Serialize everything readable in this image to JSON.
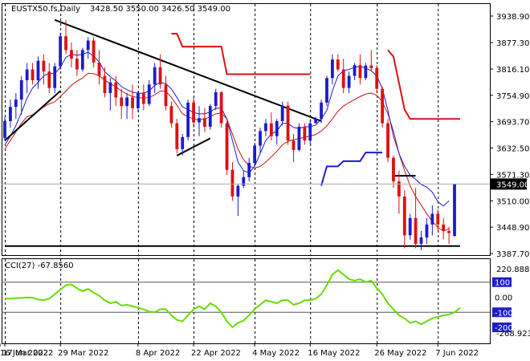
{
  "header": {
    "symbol": "EUSTX50.fs,Daily",
    "ohlc": "3428.50 3550.00 3426.50 3549.00"
  },
  "indicator": {
    "label": "CCI(27) -67.8560",
    "max_label": "220.8885",
    "min_label": "-268.9239"
  },
  "current_price_label": "3549.00",
  "chart_data": {
    "type": "candlestick",
    "title": "EUSTX50.fs,Daily",
    "price_axis": {
      "ticks": [
        "3938.90",
        "3877.30",
        "3816.10",
        "3754.90",
        "3693.70",
        "3632.50",
        "3571.30",
        "3510.00",
        "3448.90",
        "3387.70"
      ],
      "ylim": [
        3387.7,
        3938.9
      ]
    },
    "cci_axis": {
      "ticks": [
        "100",
        "0.00",
        "-100",
        "-200"
      ],
      "ylim": [
        -268.9239,
        220.8885
      ],
      "levels": [
        100,
        -100
      ]
    },
    "x_tick_labels": [
      "17 Mar 2022",
      "29 Mar 2022",
      "8 Apr 2022",
      "22 Apr 2022",
      "4 May 2022",
      "16 May 2022",
      "26 May 2022",
      "7 Jun 2022",
      "16 Jun 2022"
    ],
    "colors": {
      "up": "#1c1ccc",
      "down": "#dd1111",
      "blue_ma": "#1c1ccc",
      "red_ma": "#cc1111",
      "cci": "#66dd00",
      "trendline": "#000000",
      "support": "#000000"
    },
    "candles": [
      [
        3656,
        3705,
        3650,
        3695
      ],
      [
        3695,
        3745,
        3680,
        3728
      ],
      [
        3728,
        3760,
        3700,
        3745
      ],
      [
        3745,
        3800,
        3710,
        3790
      ],
      [
        3790,
        3830,
        3760,
        3815
      ],
      [
        3815,
        3830,
        3780,
        3790
      ],
      [
        3790,
        3845,
        3770,
        3835
      ],
      [
        3835,
        3850,
        3780,
        3810
      ],
      [
        3810,
        3830,
        3760,
        3772
      ],
      [
        3772,
        3830,
        3760,
        3822
      ],
      [
        3822,
        3900,
        3815,
        3892
      ],
      [
        3892,
        3930,
        3850,
        3860
      ],
      [
        3860,
        3878,
        3820,
        3840
      ],
      [
        3840,
        3860,
        3800,
        3815
      ],
      [
        3815,
        3865,
        3810,
        3860
      ],
      [
        3860,
        3890,
        3840,
        3882
      ],
      [
        3882,
        3890,
        3820,
        3831
      ],
      [
        3831,
        3860,
        3780,
        3800
      ],
      [
        3800,
        3820,
        3750,
        3760
      ],
      [
        3760,
        3795,
        3720,
        3785
      ],
      [
        3785,
        3800,
        3730,
        3750
      ],
      [
        3750,
        3770,
        3700,
        3730
      ],
      [
        3730,
        3760,
        3700,
        3750
      ],
      [
        3750,
        3780,
        3700,
        3725
      ],
      [
        3725,
        3765,
        3715,
        3760
      ],
      [
        3760,
        3780,
        3720,
        3735
      ],
      [
        3735,
        3790,
        3730,
        3780
      ],
      [
        3780,
        3830,
        3760,
        3820
      ],
      [
        3820,
        3850,
        3770,
        3780
      ],
      [
        3780,
        3800,
        3720,
        3730
      ],
      [
        3730,
        3740,
        3680,
        3690
      ],
      [
        3690,
        3700,
        3620,
        3630
      ],
      [
        3630,
        3665,
        3615,
        3658
      ],
      [
        3658,
        3745,
        3650,
        3738
      ],
      [
        3738,
        3750,
        3680,
        3692
      ],
      [
        3692,
        3730,
        3660,
        3702
      ],
      [
        3702,
        3725,
        3670,
        3682
      ],
      [
        3682,
        3735,
        3675,
        3730
      ],
      [
        3730,
        3770,
        3720,
        3762
      ],
      [
        3762,
        3765,
        3680,
        3690
      ],
      [
        3690,
        3695,
        3570,
        3582
      ],
      [
        3582,
        3600,
        3510,
        3520
      ],
      [
        3520,
        3550,
        3475,
        3545
      ],
      [
        3545,
        3580,
        3540,
        3565
      ],
      [
        3565,
        3610,
        3555,
        3598
      ],
      [
        3598,
        3645,
        3590,
        3638
      ],
      [
        3638,
        3680,
        3620,
        3672
      ],
      [
        3672,
        3700,
        3660,
        3690
      ],
      [
        3690,
        3715,
        3650,
        3660
      ],
      [
        3660,
        3700,
        3640,
        3695
      ],
      [
        3695,
        3740,
        3685,
        3731
      ],
      [
        3731,
        3740,
        3640,
        3650
      ],
      [
        3650,
        3665,
        3600,
        3628
      ],
      [
        3628,
        3690,
        3625,
        3682
      ],
      [
        3682,
        3690,
        3640,
        3650
      ],
      [
        3650,
        3700,
        3640,
        3690
      ],
      [
        3690,
        3705,
        3690,
        3700
      ],
      [
        3700,
        3745,
        3690,
        3738
      ],
      [
        3738,
        3800,
        3730,
        3795
      ],
      [
        3795,
        3850,
        3780,
        3838
      ],
      [
        3838,
        3850,
        3810,
        3815
      ],
      [
        3815,
        3840,
        3760,
        3772
      ],
      [
        3772,
        3810,
        3760,
        3800
      ],
      [
        3800,
        3830,
        3790,
        3825
      ],
      [
        3825,
        3850,
        3780,
        3795
      ],
      [
        3795,
        3830,
        3790,
        3824
      ],
      [
        3824,
        3860,
        3810,
        3818
      ],
      [
        3818,
        3825,
        3760,
        3770
      ],
      [
        3770,
        3775,
        3680,
        3690
      ],
      [
        3690,
        3700,
        3600,
        3610
      ],
      [
        3610,
        3615,
        3540,
        3555
      ],
      [
        3555,
        3580,
        3480,
        3520
      ],
      [
        3520,
        3535,
        3400,
        3430
      ],
      [
        3430,
        3480,
        3420,
        3470
      ],
      [
        3470,
        3540,
        3400,
        3410
      ],
      [
        3410,
        3440,
        3395,
        3425
      ],
      [
        3425,
        3470,
        3410,
        3455
      ],
      [
        3455,
        3500,
        3430,
        3480
      ],
      [
        3480,
        3490,
        3440,
        3455
      ],
      [
        3455,
        3470,
        3420,
        3440
      ],
      [
        3440,
        3450,
        3410,
        3435
      ],
      [
        3428.5,
        3550,
        3426.5,
        3549
      ]
    ],
    "blue_ma": [
      3640,
      3660,
      3685,
      3715,
      3748,
      3772,
      3785,
      3800,
      3806,
      3805,
      3820,
      3843,
      3850,
      3848,
      3850,
      3855,
      3846,
      3832,
      3810,
      3798,
      3788,
      3775,
      3768,
      3762,
      3760,
      3760,
      3765,
      3778,
      3785,
      3782,
      3770,
      3750,
      3728,
      3722,
      3715,
      3712,
      3712,
      3716,
      3725,
      3725,
      3700,
      3650,
      3600,
      3580,
      3575,
      3590,
      3620,
      3650,
      3665,
      3672,
      3690,
      3690,
      3680,
      3678,
      3682,
      3682,
      3686,
      3700,
      3720,
      3765,
      3800,
      3812,
      3815,
      3820,
      3822,
      3818,
      3812,
      3800,
      3770,
      3720,
      3660,
      3620,
      3590,
      3570,
      3560,
      3548,
      3542,
      3530,
      3508,
      3498,
      3510
    ],
    "red_ma": [
      3630,
      3650,
      3670,
      3690,
      3705,
      3710,
      3718,
      3728,
      3735,
      3740,
      3752,
      3765,
      3778,
      3788,
      3795,
      3806,
      3805,
      3800,
      3790,
      3782,
      3775,
      3765,
      3758,
      3752,
      3750,
      3748,
      3750,
      3756,
      3765,
      3764,
      3750,
      3732,
      3712,
      3705,
      3700,
      3698,
      3700,
      3705,
      3712,
      3714,
      3700,
      3665,
      3630,
      3606,
      3590,
      3586,
      3590,
      3600,
      3612,
      3625,
      3640,
      3648,
      3652,
      3654,
      3658,
      3660,
      3664,
      3672,
      3684,
      3700,
      3718,
      3730,
      3738,
      3745,
      3752,
      3758,
      3760,
      3755,
      3740,
      3712,
      3672,
      3620,
      3580,
      3545,
      3520,
      3500,
      3480,
      3462,
      3448,
      3440,
      3445
    ],
    "stops_upper": [
      [
        [
          30,
          3898
        ],
        [
          31,
          3898
        ],
        [
          32,
          3868
        ],
        [
          39,
          3868
        ],
        [
          40,
          3804
        ],
        [
          55,
          3804
        ]
      ],
      [
        [
          69,
          3860
        ],
        [
          70,
          3845
        ],
        [
          72,
          3722
        ],
        [
          73,
          3700
        ],
        [
          82,
          3700
        ]
      ]
    ],
    "stops_lower": [
      [
        [
          57,
          3545
        ],
        [
          58,
          3590
        ],
        [
          60,
          3590
        ],
        [
          61,
          3602
        ],
        [
          64,
          3602
        ],
        [
          65,
          3622
        ],
        [
          68,
          3622
        ]
      ]
    ],
    "trendlines": [
      [
        [
          0,
          3650
        ],
        [
          10,
          3765
        ]
      ],
      [
        [
          9,
          3930
        ],
        [
          57,
          3695
        ]
      ],
      [
        [
          31,
          3615
        ],
        [
          37,
          3655
        ]
      ],
      [
        [
          70,
          3568
        ],
        [
          74,
          3568
        ]
      ],
      [
        [
          0,
          3405
        ],
        [
          82,
          3405
        ]
      ]
    ],
    "vertical_separators": [
      0,
      10,
      24,
      34,
      45,
      55,
      67,
      78
    ],
    "cci": [
      -8,
      -10,
      -6,
      -5,
      -2,
      -3,
      -15,
      -20,
      -10,
      20,
      50,
      80,
      85,
      60,
      40,
      55,
      30,
      10,
      -20,
      -40,
      -30,
      -55,
      -50,
      -60,
      -70,
      -80,
      -95,
      -100,
      -80,
      -80,
      -120,
      -150,
      -160,
      -120,
      -80,
      -60,
      -80,
      -40,
      -60,
      -100,
      -160,
      -200,
      -170,
      -155,
      -120,
      -80,
      -50,
      -20,
      -30,
      -40,
      -20,
      -20,
      -50,
      -40,
      -20,
      -20,
      -10,
      20,
      80,
      150,
      180,
      150,
      120,
      110,
      120,
      100,
      110,
      60,
      20,
      -40,
      -80,
      -120,
      -140,
      -170,
      -160,
      -180,
      -160,
      -140,
      -130,
      -120,
      -115,
      -100,
      -70
    ]
  }
}
